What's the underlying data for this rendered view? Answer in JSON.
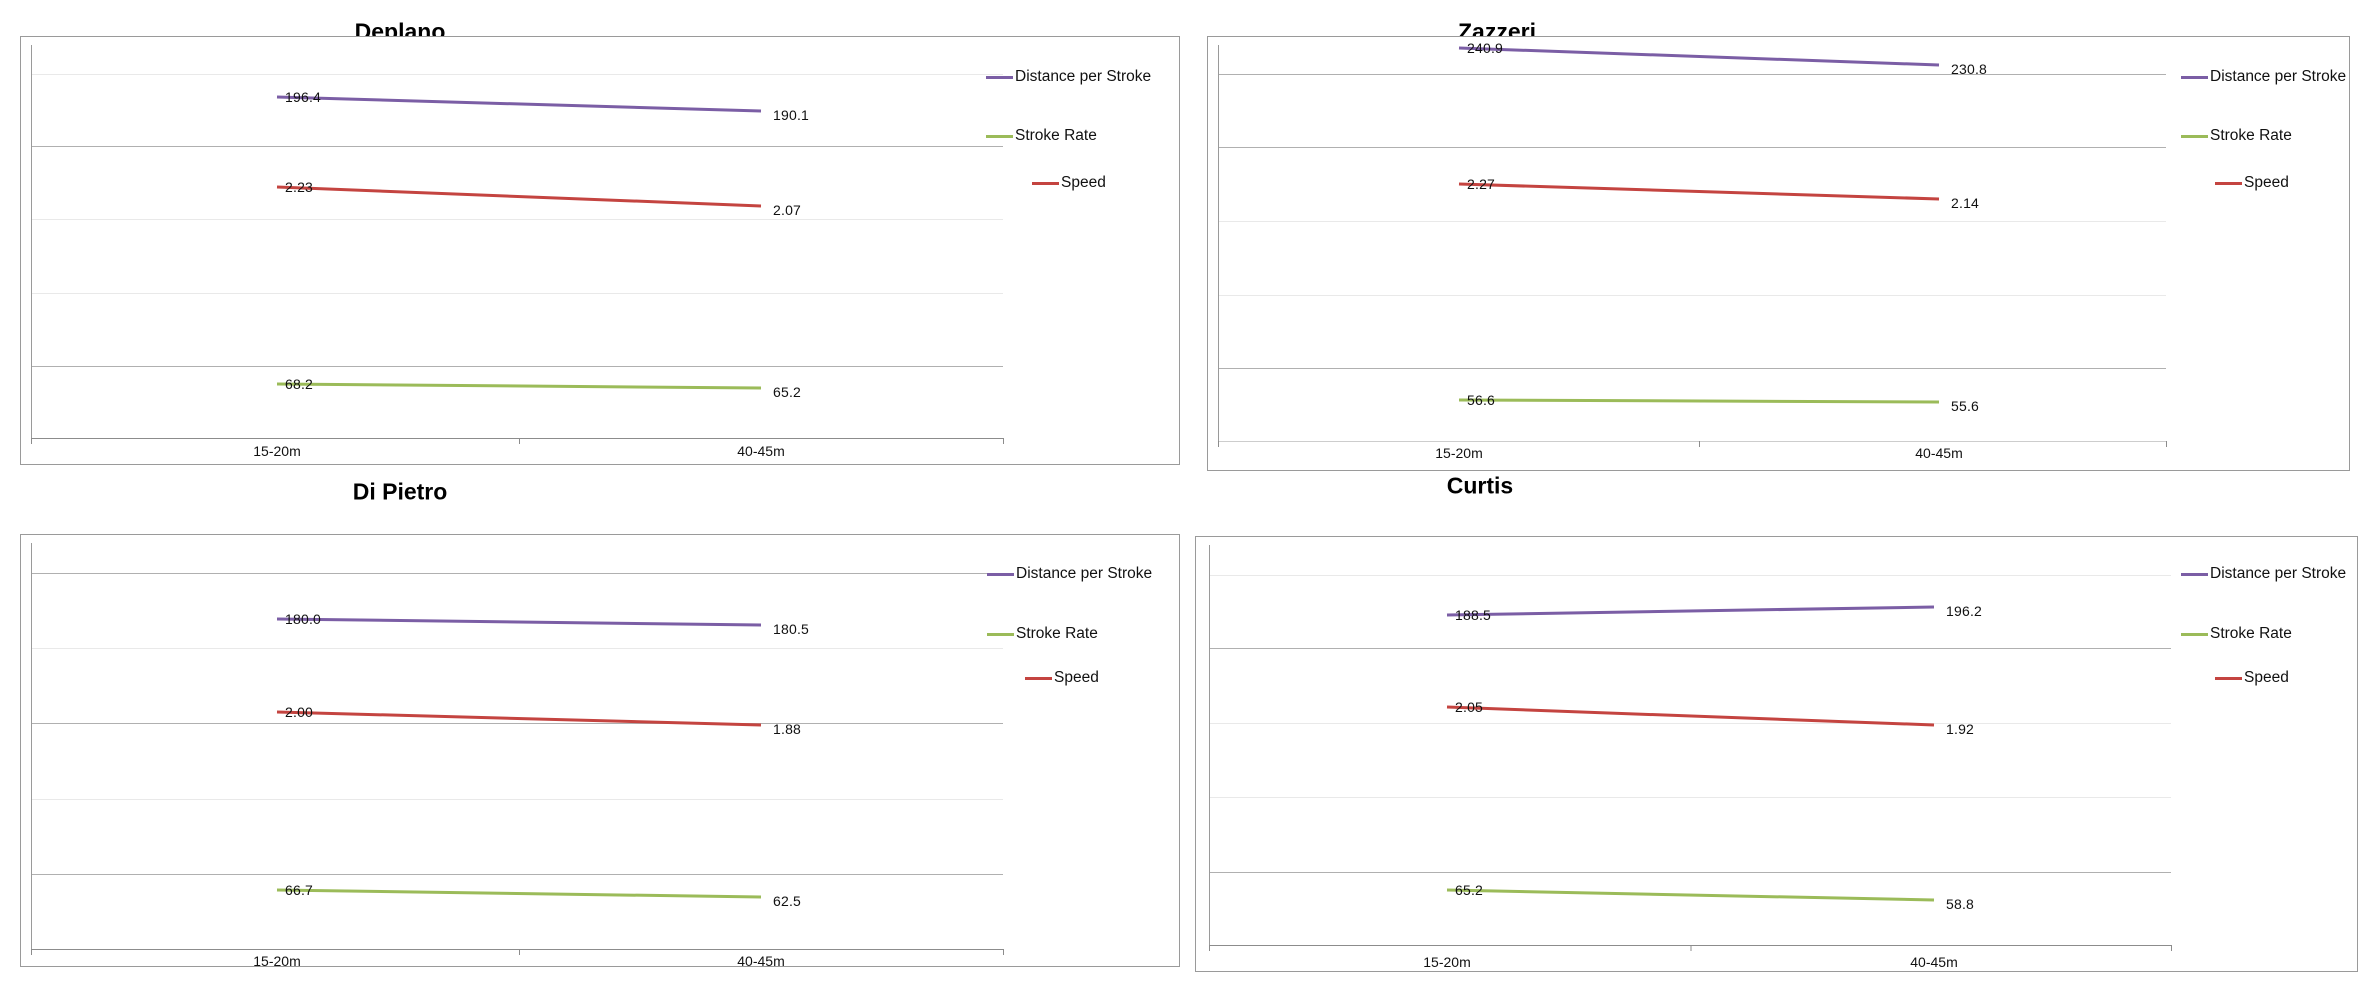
{
  "page": {
    "background": "#ffffff",
    "series_colors": {
      "distance_per_stroke": "#7B5EA5",
      "stroke_rate": "#9BBB59",
      "speed": "#C44440"
    }
  },
  "chart_data": [
    {
      "type": "line",
      "title": "Deplano",
      "categories": [
        "15-20m",
        "40-45m"
      ],
      "legend_position": "right",
      "grid": true,
      "series": [
        {
          "name": "Distance per Stroke",
          "color": "#7B5EA5",
          "values": [
            196.4,
            190.1
          ],
          "labels": [
            "196.4",
            "190.1"
          ]
        },
        {
          "name": "Stroke Rate",
          "color": "#9BBB59",
          "values": [
            68.2,
            65.2
          ],
          "labels": [
            "68.2",
            "65.2"
          ]
        },
        {
          "name": "Speed",
          "color": "#C44440",
          "values": [
            2.23,
            2.07
          ],
          "labels": [
            "2.23",
            "2.07"
          ]
        }
      ]
    },
    {
      "type": "line",
      "title": "Zazzeri",
      "categories": [
        "15-20m",
        "40-45m"
      ],
      "legend_position": "right",
      "grid": true,
      "series": [
        {
          "name": "Distance per Stroke",
          "color": "#7B5EA5",
          "values": [
            240.9,
            230.8
          ],
          "labels": [
            "240.9",
            "230.8"
          ]
        },
        {
          "name": "Stroke Rate",
          "color": "#9BBB59",
          "values": [
            56.6,
            55.6
          ],
          "labels": [
            "56.6",
            "55.6"
          ]
        },
        {
          "name": "Speed",
          "color": "#C44440",
          "values": [
            2.27,
            2.14
          ],
          "labels": [
            "2.27",
            "2.14"
          ]
        }
      ]
    },
    {
      "type": "line",
      "title": "Di Pietro",
      "categories": [
        "15-20m",
        "40-45m"
      ],
      "legend_position": "right",
      "grid": true,
      "series": [
        {
          "name": "Distance per Stroke",
          "color": "#7B5EA5",
          "values": [
            180.0,
            180.5
          ],
          "labels": [
            "180.0",
            "180.5"
          ]
        },
        {
          "name": "Stroke Rate",
          "color": "#9BBB59",
          "values": [
            66.7,
            62.5
          ],
          "labels": [
            "66.7",
            "62.5"
          ]
        },
        {
          "name": "Speed",
          "color": "#C44440",
          "values": [
            2.0,
            1.88
          ],
          "labels": [
            "2.00",
            "1.88"
          ]
        }
      ]
    },
    {
      "type": "line",
      "title": "Curtis",
      "categories": [
        "15-20m",
        "40-45m"
      ],
      "legend_position": "right",
      "grid": true,
      "series": [
        {
          "name": "Distance per Stroke",
          "color": "#7B5EA5",
          "values": [
            188.5,
            196.2
          ],
          "labels": [
            "188.5",
            "196.2"
          ]
        },
        {
          "name": "Stroke Rate",
          "color": "#9BBB59",
          "values": [
            65.2,
            58.8
          ],
          "labels": [
            "65.2",
            "58.8"
          ]
        },
        {
          "name": "Speed",
          "color": "#C44440",
          "values": [
            2.05,
            1.92
          ],
          "labels": [
            "2.05",
            "1.92"
          ]
        }
      ]
    }
  ]
}
